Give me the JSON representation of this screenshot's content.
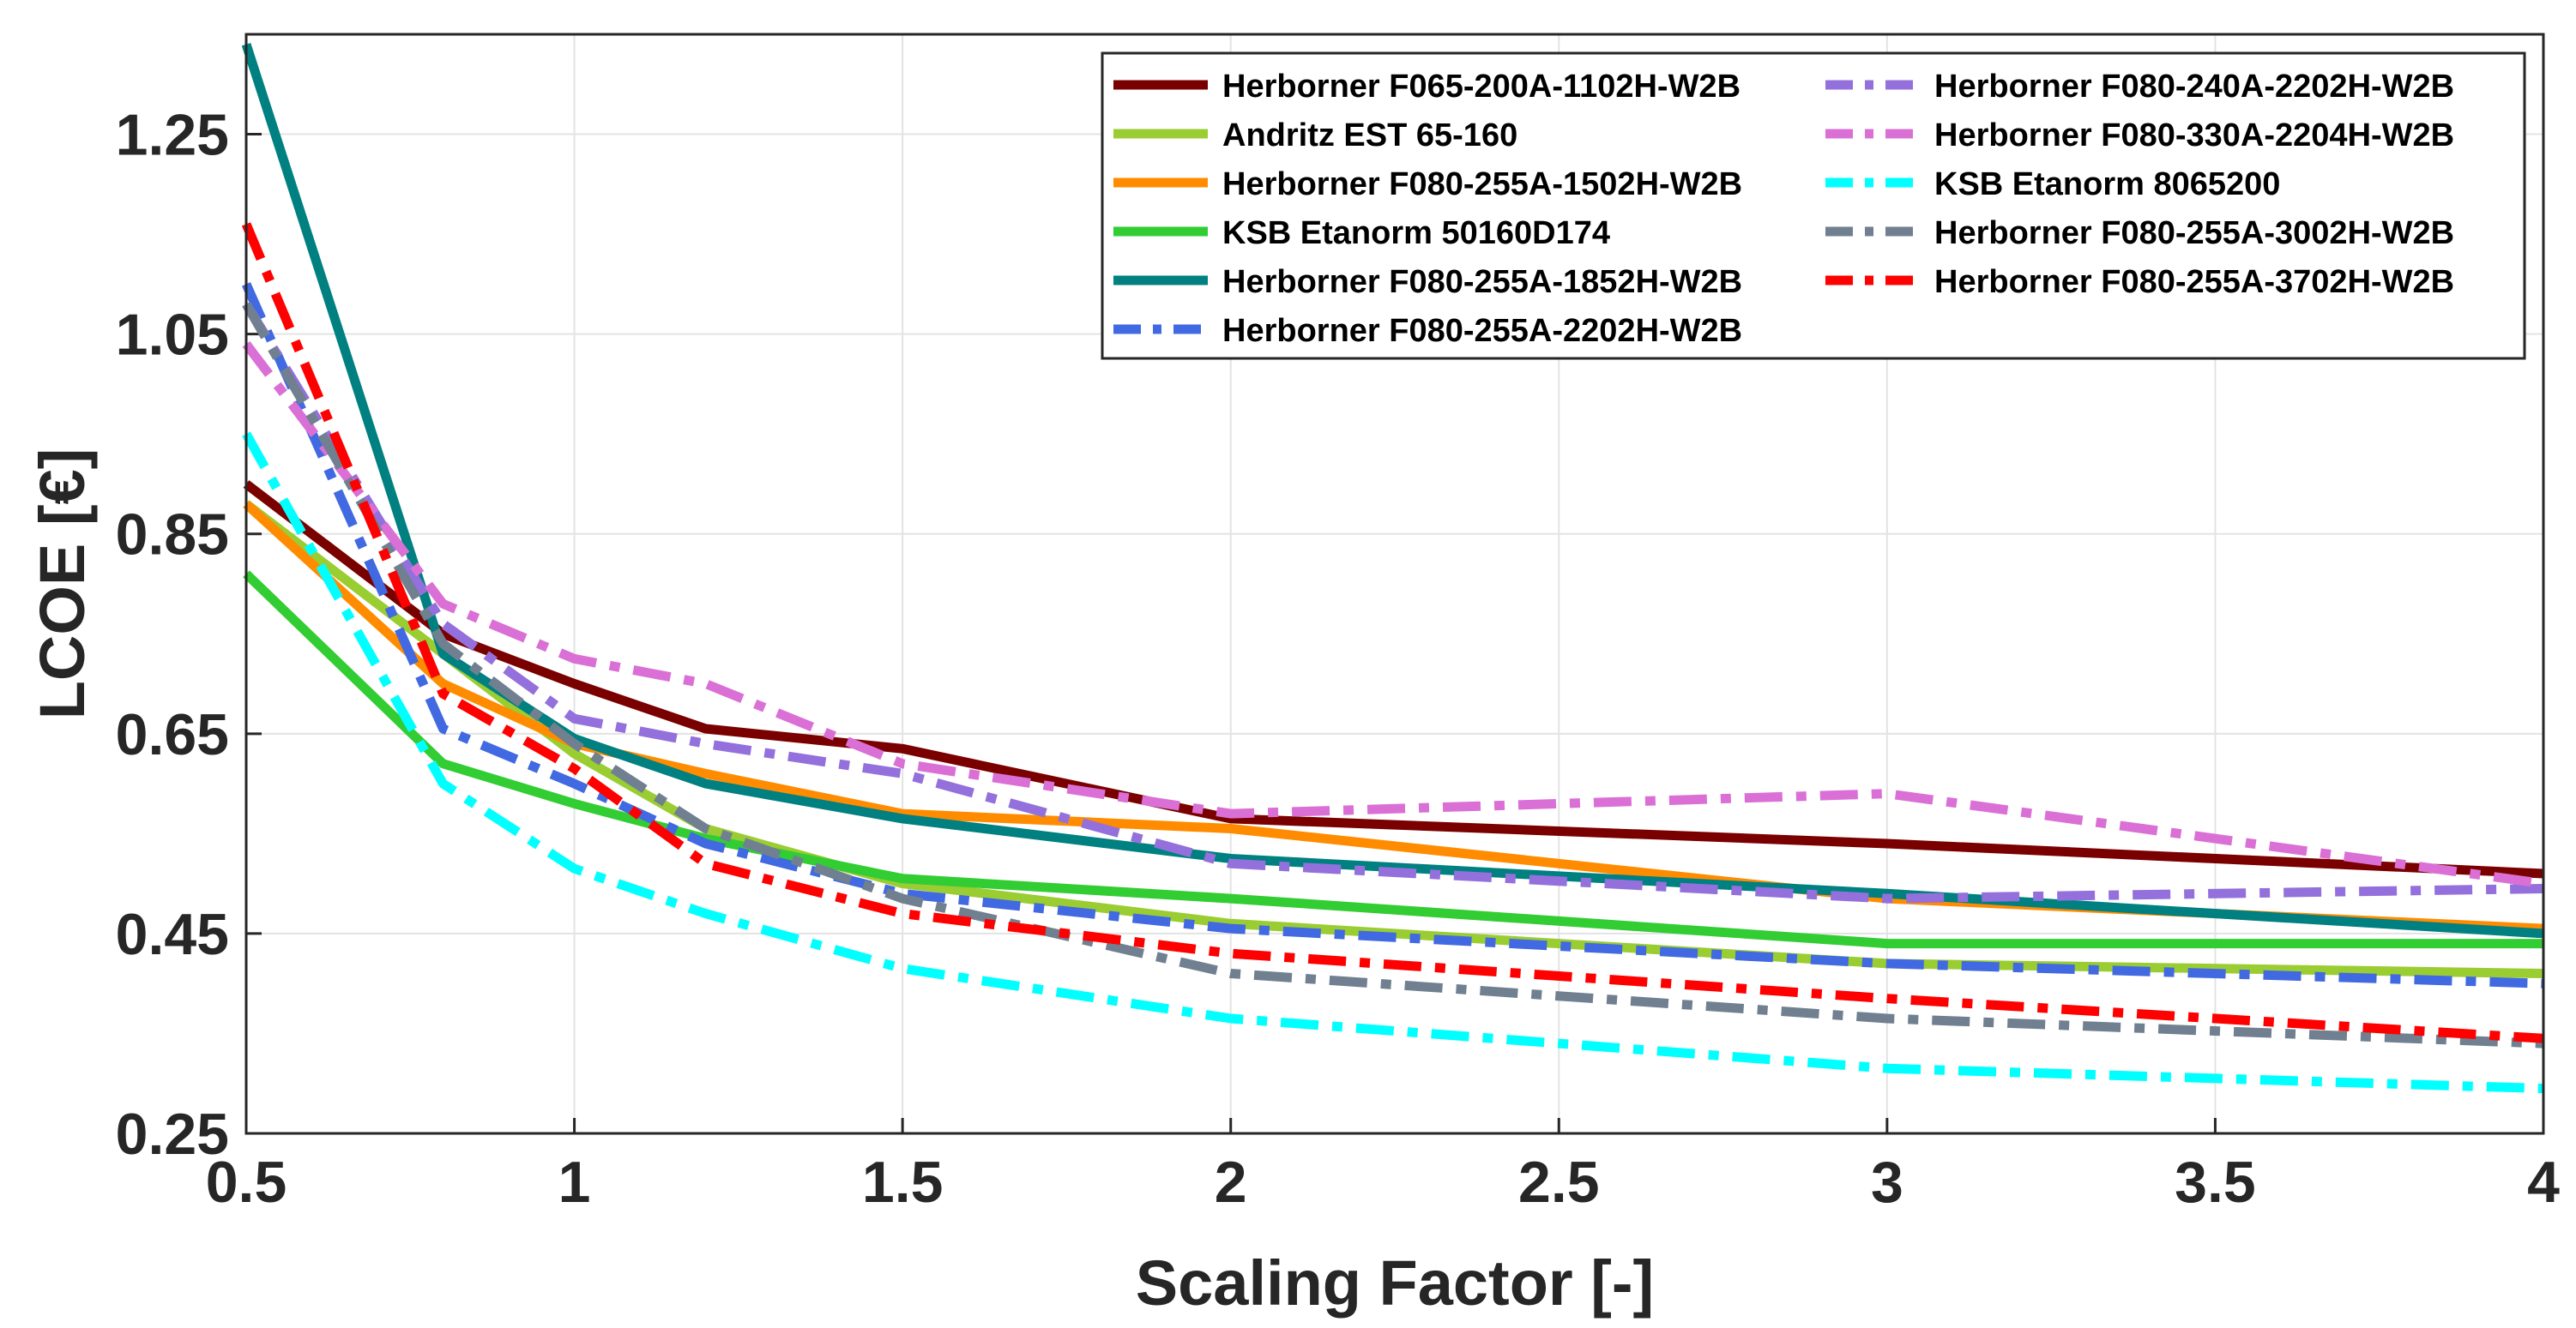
{
  "chart_data": {
    "type": "line",
    "title": "",
    "xlabel": "Scaling Factor [-]",
    "ylabel": "LCOE [€]",
    "xlim": [
      0.5,
      4
    ],
    "ylim": [
      0.25,
      1.35
    ],
    "x_ticks": [
      "0.5",
      "1",
      "1.5",
      "2",
      "2.5",
      "3",
      "3.5",
      "4"
    ],
    "y_ticks": [
      "0.25",
      "0.45",
      "0.65",
      "0.85",
      "1.05",
      "1.25"
    ],
    "grid": true,
    "legend_position": "top-right",
    "x": [
      0.5,
      0.8,
      1.0,
      1.2,
      1.5,
      2.0,
      3.0,
      4.0
    ],
    "series": [
      {
        "name": "Herborner F065-200A-1102H-W2B",
        "color": "#7a0000",
        "dash": "solid",
        "values": [
          0.9,
          0.75,
          0.7,
          0.655,
          0.635,
          0.565,
          0.54,
          0.51
        ]
      },
      {
        "name": "Andritz EST 65-160",
        "color": "#9acd32",
        "dash": "solid",
        "values": [
          0.88,
          0.73,
          0.63,
          0.555,
          0.5,
          0.46,
          0.42,
          0.41
        ]
      },
      {
        "name": "Herborner F080-255A-1502H-W2B",
        "color": "#ff8c00",
        "dash": "solid",
        "values": [
          0.88,
          0.7,
          0.64,
          0.61,
          0.57,
          0.555,
          0.485,
          0.455
        ]
      },
      {
        "name": "KSB Etanorm 50160D174",
        "color": "#32cd32",
        "dash": "solid",
        "values": [
          0.81,
          0.62,
          0.58,
          0.545,
          0.505,
          0.485,
          0.44,
          0.44
        ]
      },
      {
        "name": "Herborner F080-255A-1852H-W2B",
        "color": "#008080",
        "dash": "solid",
        "values": [
          1.34,
          0.73,
          0.645,
          0.6,
          0.565,
          0.525,
          0.49,
          0.45
        ]
      },
      {
        "name": "Herborner F080-255A-2202H-W2B",
        "color": "#4169e1",
        "dash": "dashdot",
        "values": [
          1.1,
          0.655,
          0.6,
          0.54,
          0.49,
          0.455,
          0.42,
          0.4
        ]
      },
      {
        "name": "Herborner F080-240A-2202H-W2B",
        "color": "#9370db",
        "dash": "dashdot",
        "values": [
          1.08,
          0.76,
          0.665,
          0.64,
          0.61,
          0.52,
          0.485,
          0.495
        ]
      },
      {
        "name": "Herborner F080-330A-2204H-W2B",
        "color": "#da70d6",
        "dash": "dashdot",
        "values": [
          1.04,
          0.78,
          0.725,
          0.7,
          0.62,
          0.57,
          0.59,
          0.5
        ]
      },
      {
        "name": "KSB Etanorm 8065200",
        "color": "#00ffff",
        "dash": "dashdot",
        "values": [
          0.95,
          0.6,
          0.515,
          0.47,
          0.415,
          0.365,
          0.315,
          0.295
        ]
      },
      {
        "name": "Herborner F080-255A-3002H-W2B",
        "color": "#708090",
        "dash": "dashdot",
        "values": [
          1.08,
          0.74,
          0.64,
          0.555,
          0.485,
          0.41,
          0.365,
          0.34
        ]
      },
      {
        "name": "Herborner F080-255A-3702H-W2B",
        "color": "#ff0000",
        "dash": "dashdot",
        "values": [
          1.16,
          0.69,
          0.615,
          0.52,
          0.47,
          0.43,
          0.385,
          0.345
        ]
      }
    ]
  }
}
